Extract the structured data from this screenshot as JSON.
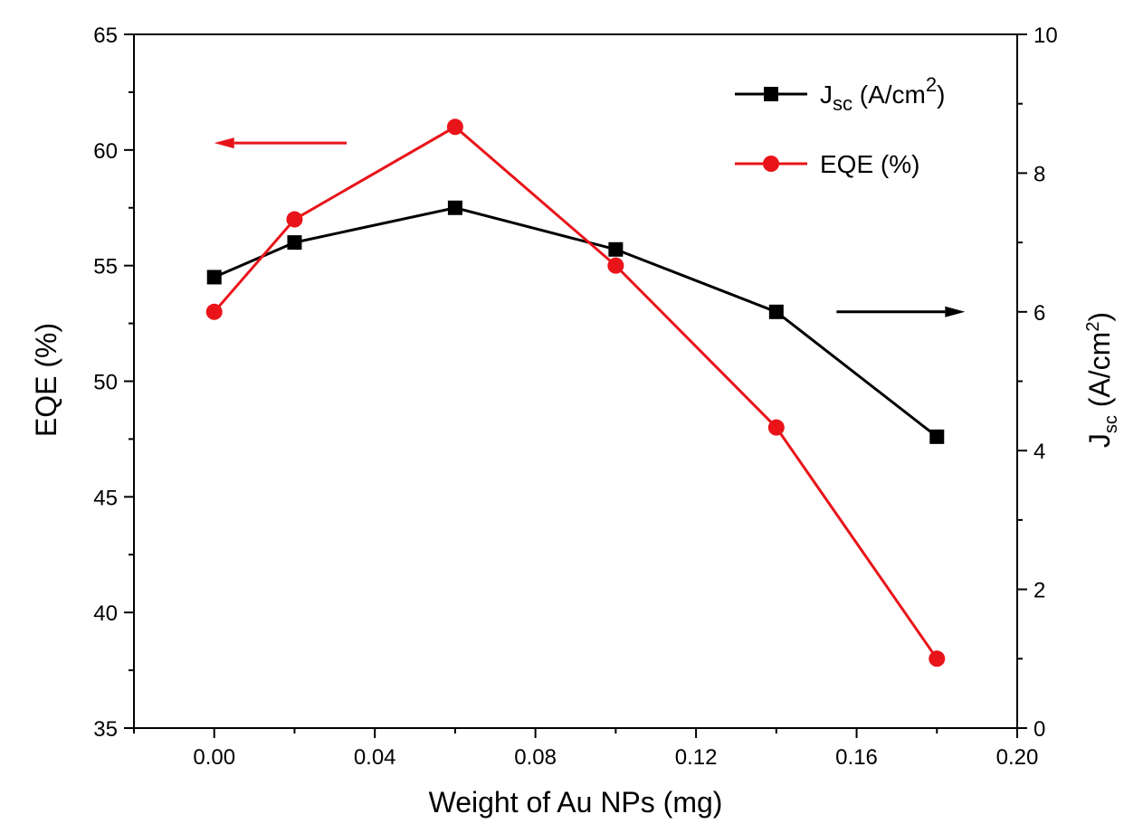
{
  "chart_data": {
    "type": "line",
    "title": "",
    "xlabel": "Weight of Au NPs (mg)",
    "ylabel_left": "EQE (%)",
    "ylabel_right": {
      "main": "J",
      "sub": "sc",
      "rest": " (A/cm",
      "sup": "2",
      "end": ")"
    },
    "xlim": [
      -0.02,
      0.2
    ],
    "ylim_left": [
      35,
      65
    ],
    "ylim_right": [
      0,
      10
    ],
    "x_ticks": [
      "0.00",
      "0.04",
      "0.08",
      "0.12",
      "0.16",
      "0.20"
    ],
    "y_left_ticks": [
      "35",
      "40",
      "45",
      "50",
      "55",
      "60",
      "65"
    ],
    "y_right_ticks": [
      "0",
      "2",
      "4",
      "6",
      "8",
      "10"
    ],
    "grid": false,
    "legend_position": "top-right",
    "series": [
      {
        "name": "Jsc (A/cm2)",
        "label": {
          "main": "J",
          "sub": "sc",
          "rest": " (A/cm",
          "sup": "2",
          "end": ")"
        },
        "axis": "right",
        "color": "#000000",
        "marker": "square",
        "x": [
          0.0,
          0.02,
          0.06,
          0.1,
          0.14,
          0.18
        ],
        "y": [
          6.5,
          7.0,
          7.5,
          6.9,
          6.0,
          4.2
        ]
      },
      {
        "name": "EQE (%)",
        "label": {
          "main": "EQE (%)"
        },
        "axis": "left",
        "color": "#e8141a",
        "marker": "circle",
        "x": [
          0.0,
          0.02,
          0.06,
          0.1,
          0.14,
          0.18
        ],
        "y": [
          53,
          57,
          61,
          55,
          48,
          38
        ]
      }
    ],
    "annotations": [
      {
        "type": "arrow",
        "direction": "left",
        "axis": "left",
        "color": "#e8141a",
        "x_from": 0.033,
        "x_to": 0.0,
        "y": 60.3
      },
      {
        "type": "arrow",
        "direction": "right",
        "axis": "right",
        "color": "#000000",
        "x_from": 0.155,
        "x_to": 0.187,
        "y": 6.0
      }
    ]
  }
}
